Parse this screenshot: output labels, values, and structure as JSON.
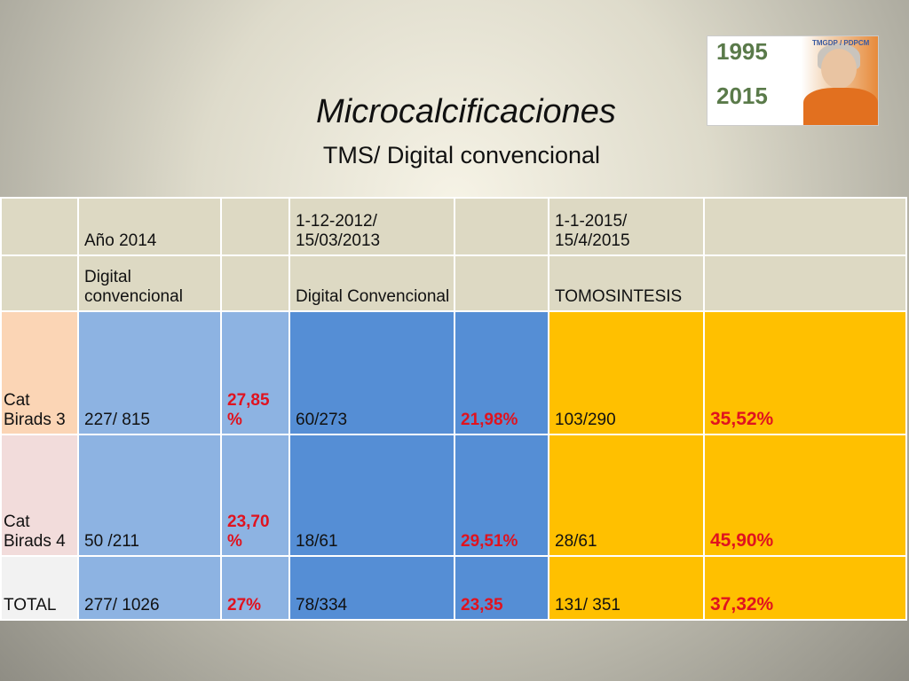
{
  "header": {
    "title": "Microcalcificaciones",
    "subtitle": "TMS/ Digital  convencional"
  },
  "logo": {
    "top_year": "1995",
    "bottom_year": "2015",
    "tag": "TMGDP / PDPCM"
  },
  "table": {
    "rows": [
      [
        null,
        "Año 2014",
        null,
        "1-12-2012/ 15/03/2013",
        null,
        "1-1-2015/ 15/4/2015",
        null
      ],
      [
        null,
        "Digital convencional",
        null,
        "Digital Convencional",
        null,
        "TOMOSINTESIS",
        null
      ],
      [
        "Cat Birads 3",
        "227/ 815",
        "27,85 %",
        "60/273",
        "21,98%",
        "103/290",
        "35,52%"
      ],
      [
        "Cat Birads 4",
        "50 /211",
        "23,70 %",
        "18/61",
        "29,51%",
        "28/61",
        "45,90%"
      ],
      [
        "TOTAL",
        "277/ 1026",
        "27%",
        "78/334",
        "23,35",
        "131/ 351",
        "37,32%"
      ]
    ]
  }
}
